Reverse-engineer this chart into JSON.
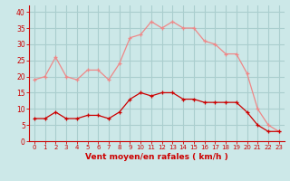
{
  "x": [
    0,
    1,
    2,
    3,
    4,
    5,
    6,
    7,
    8,
    9,
    10,
    11,
    12,
    13,
    14,
    15,
    16,
    17,
    18,
    19,
    20,
    21,
    22,
    23
  ],
  "wind_avg": [
    7,
    7,
    9,
    7,
    7,
    8,
    8,
    7,
    9,
    13,
    15,
    14,
    15,
    15,
    13,
    13,
    12,
    12,
    12,
    12,
    9,
    5,
    3,
    3
  ],
  "wind_gust": [
    19,
    20,
    26,
    20,
    19,
    22,
    22,
    19,
    24,
    32,
    33,
    37,
    35,
    37,
    35,
    35,
    31,
    30,
    27,
    27,
    21,
    10,
    5,
    3
  ],
  "bg_color": "#cce8e8",
  "grid_color": "#aacece",
  "avg_color": "#cc0000",
  "gust_color": "#ee8888",
  "tick_color": "#cc0000",
  "xlabel": "Vent moyen/en rafales ( km/h )",
  "xlabel_color": "#cc0000",
  "ylim": [
    0,
    42
  ],
  "yticks": [
    0,
    5,
    10,
    15,
    20,
    25,
    30,
    35,
    40
  ],
  "marker": "+"
}
